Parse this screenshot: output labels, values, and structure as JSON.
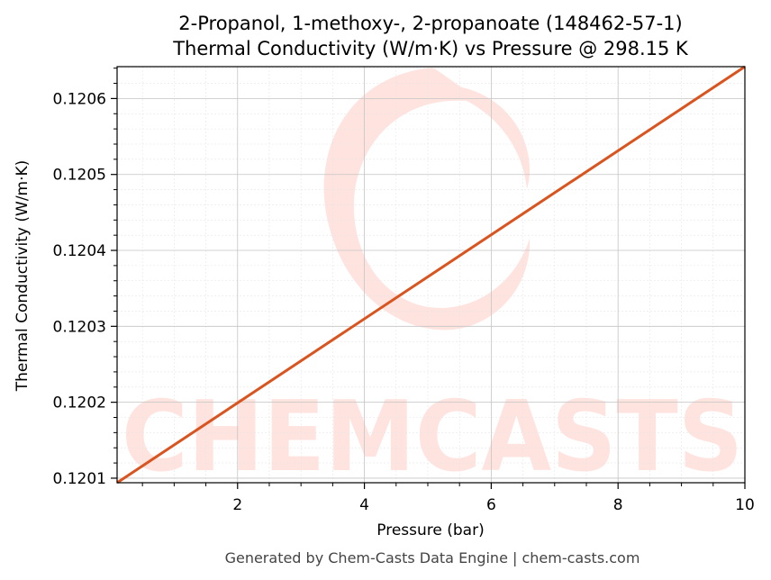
{
  "chart_data": {
    "type": "line",
    "title_line1": "2-Propanol, 1-methoxy-, 2-propanoate (148462-57-1)",
    "title_line2": "Thermal Conductivity (W/m·K) vs Pressure @ 298.15 K",
    "xlabel": "Pressure (bar)",
    "ylabel": "Thermal Conductivity (W/m·K)",
    "xlim": [
      0.1,
      10
    ],
    "ylim": [
      0.120094,
      0.120642
    ],
    "x_ticks": [
      2,
      4,
      6,
      8,
      10
    ],
    "x_tick_labels": [
      "2",
      "4",
      "6",
      "8",
      "10"
    ],
    "y_ticks": [
      0.1201,
      0.1202,
      0.1203,
      0.1204,
      0.1205,
      0.1206
    ],
    "y_tick_labels": [
      "0.1201",
      "0.1202",
      "0.1203",
      "0.1204",
      "0.1205",
      "0.1206"
    ],
    "grid": true,
    "series": [
      {
        "color": "#d9541e",
        "x": [
          0.1,
          10
        ],
        "y": [
          0.120094,
          0.120642
        ]
      }
    ]
  },
  "watermark": {
    "text": "CHEMCASTS",
    "color": "#ffe3df"
  },
  "footer": "Generated by Chem-Casts Data Engine | chem-casts.com"
}
